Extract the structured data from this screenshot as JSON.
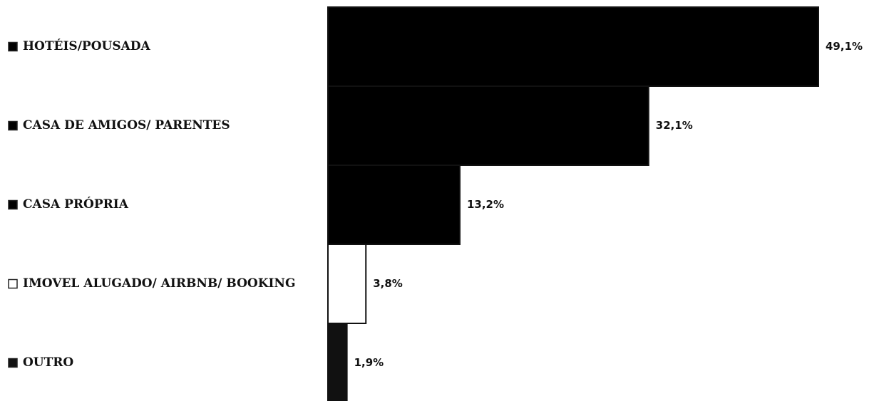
{
  "chart_data": {
    "type": "bar",
    "orientation": "horizontal",
    "categories": [
      "HOTÉIS/POUSADA",
      "CASA DE AMIGOS/ PARENTES",
      "CASA PRÓPRIA",
      "IMOVEL ALUGADO/ AIRBNB/ BOOKING",
      "OUTRO"
    ],
    "values": [
      49.1,
      32.1,
      13.2,
      3.8,
      1.9
    ],
    "value_labels": [
      "49,1%",
      "32,1%",
      "13,2%",
      "3,8%",
      "1,9%"
    ],
    "colors": [
      "#000000",
      "#000000",
      "#000000",
      "#ffffff",
      "#111111"
    ]
  }
}
